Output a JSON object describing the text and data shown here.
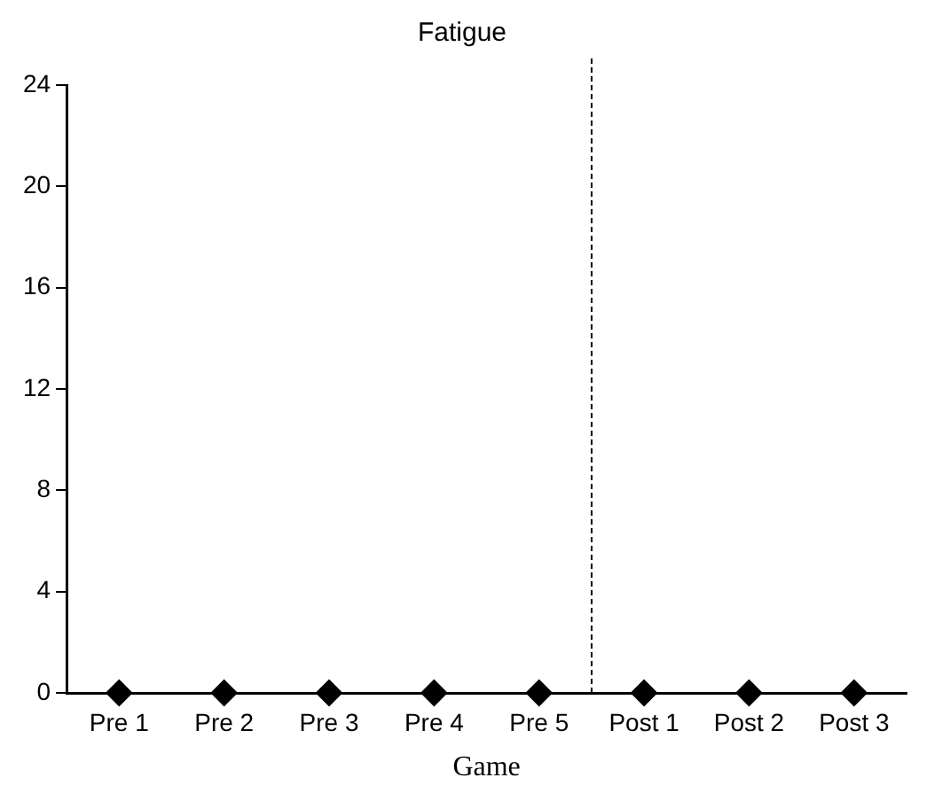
{
  "chart_data": {
    "type": "scatter",
    "title": "Fatigue",
    "xlabel": "Game",
    "categories": [
      "Pre 1",
      "Pre 2",
      "Pre 3",
      "Pre 4",
      "Pre 5",
      "Post 1",
      "Post 2",
      "Post 3"
    ],
    "series": [
      {
        "color": "#000000",
        "values": [
          0,
          0,
          0,
          0,
          0,
          0,
          0,
          0
        ]
      }
    ],
    "ylim": [
      0,
      24
    ],
    "yticks": [
      0,
      4,
      8,
      12,
      16,
      20,
      24
    ],
    "grid": false,
    "legend": false,
    "marker": "diamond"
  }
}
